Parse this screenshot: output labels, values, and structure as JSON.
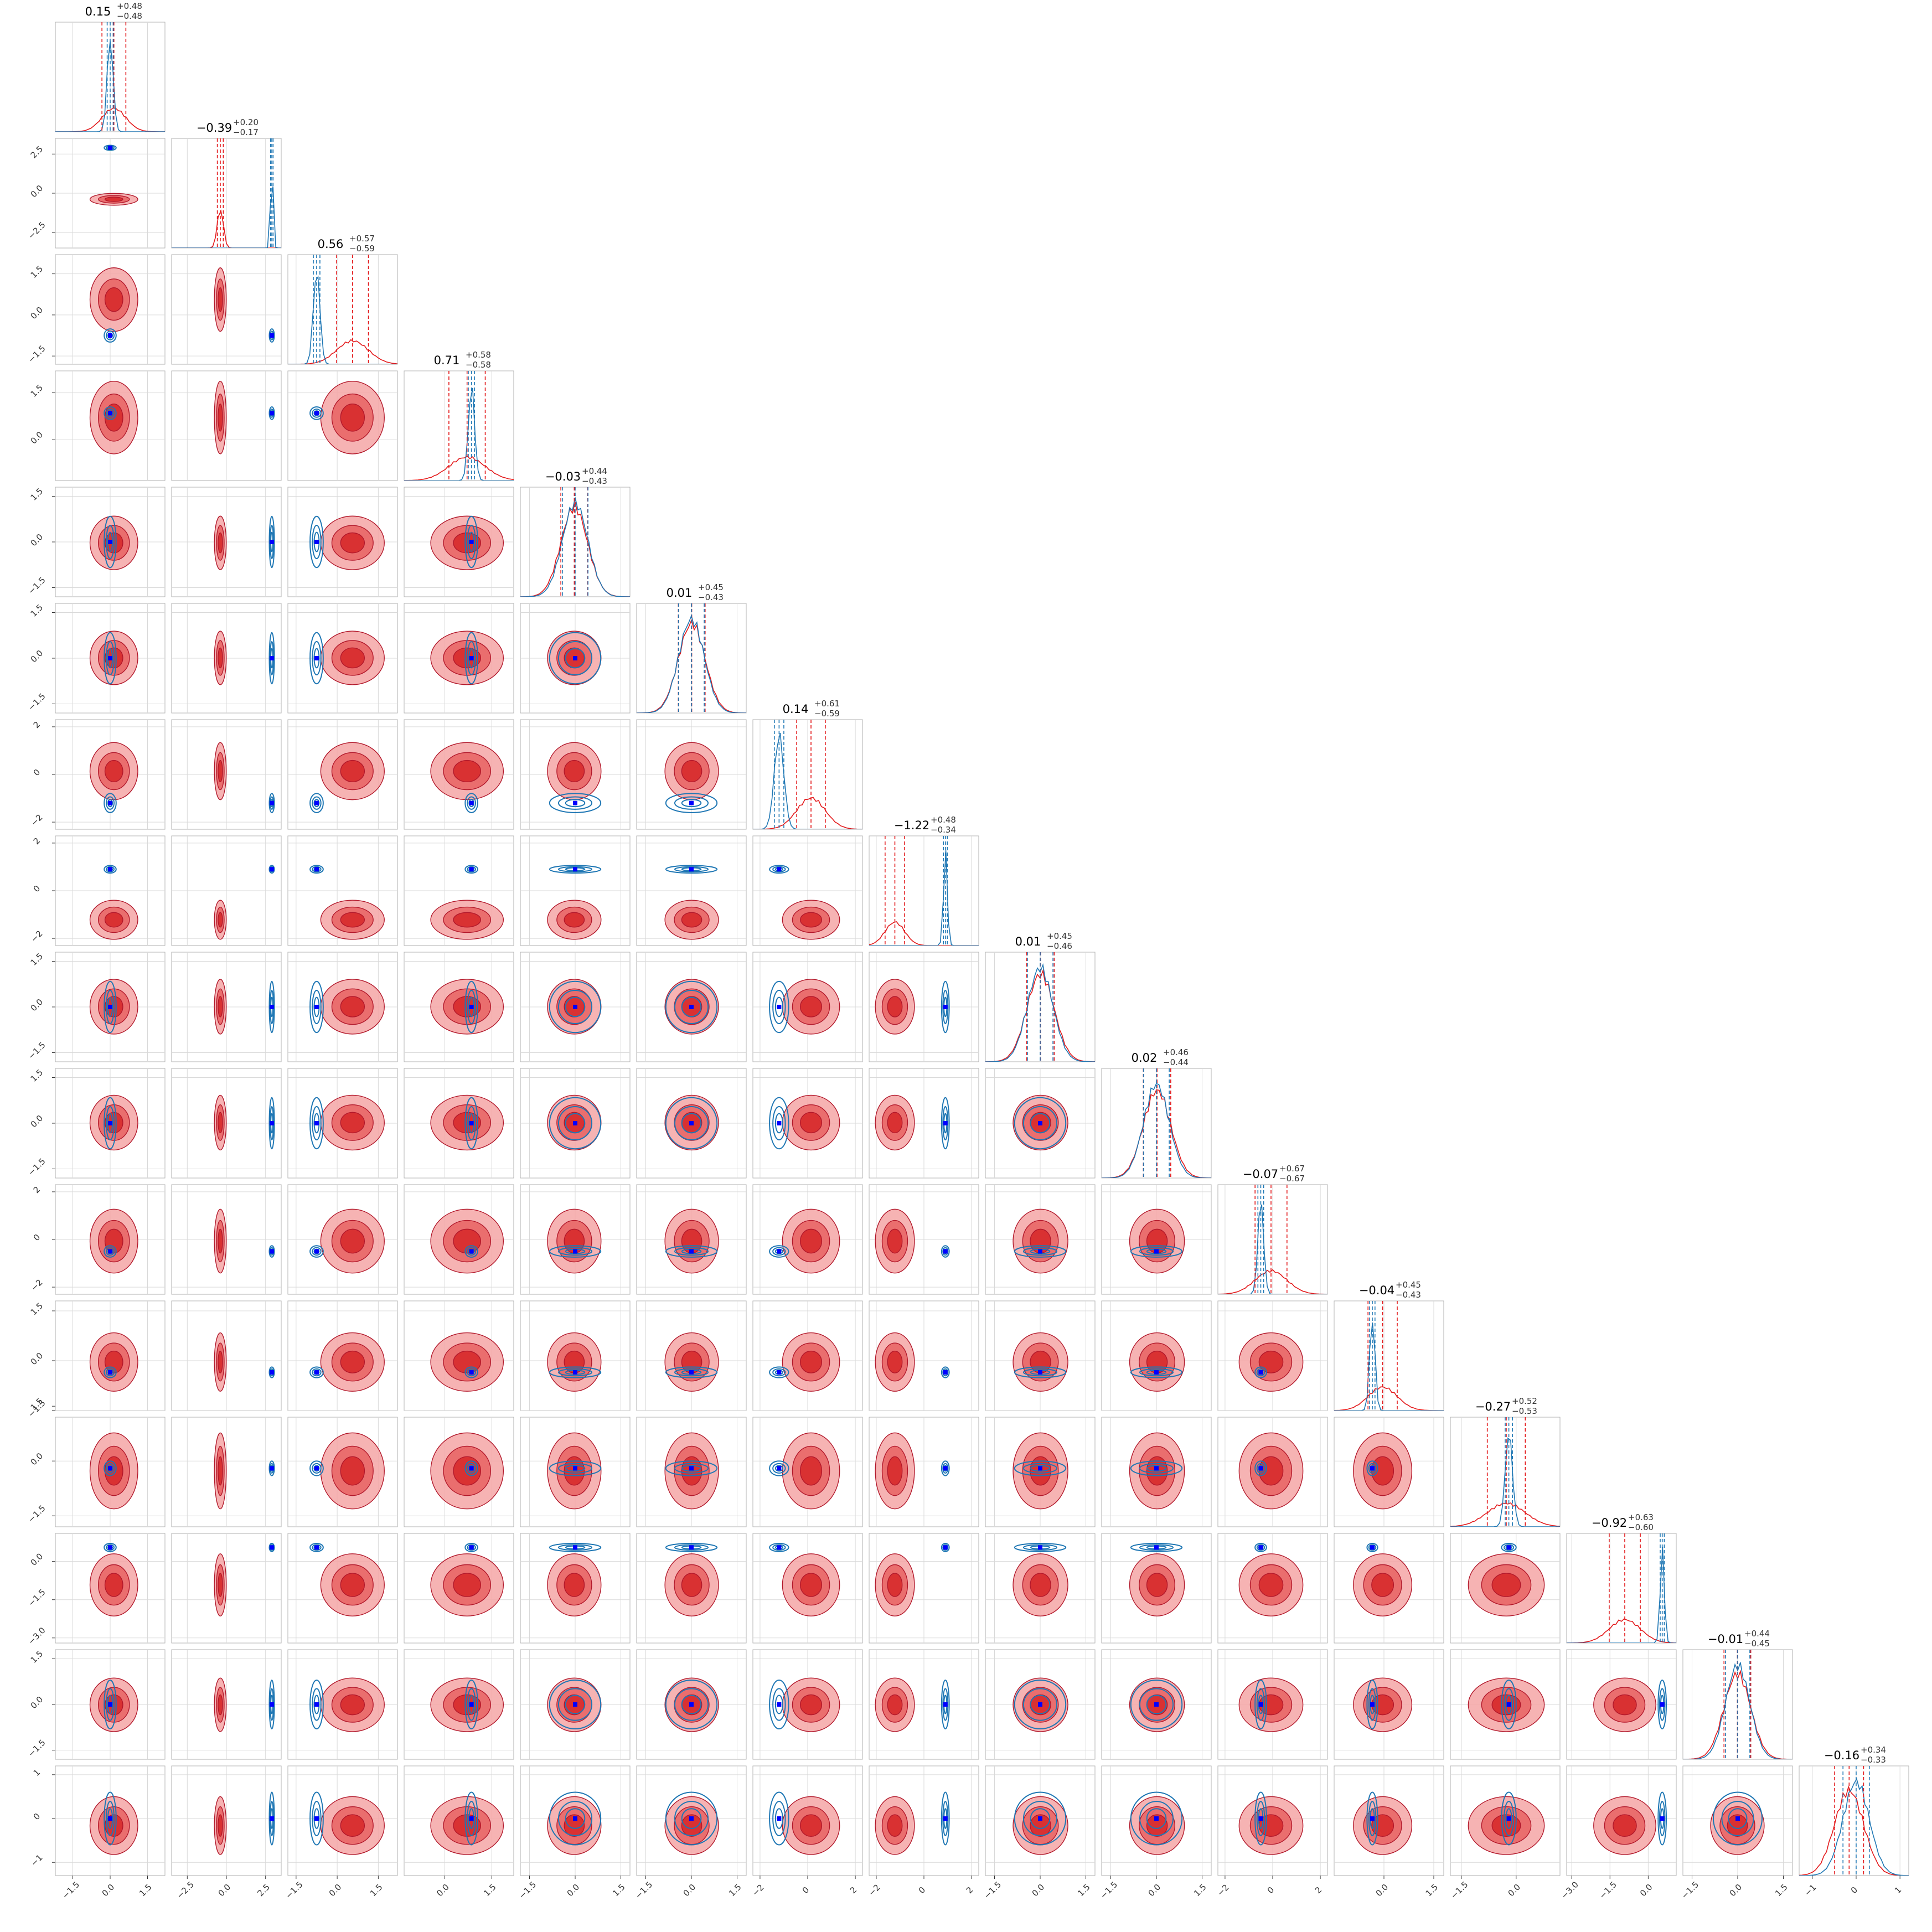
{
  "chart_data": {
    "type": "corner",
    "n_params": 16,
    "series": [
      {
        "color": "#e31a1c"
      },
      {
        "color": "#1f77b4"
      }
    ],
    "titles": [
      "0.15$^{+0.48}_{-0.48}$",
      "−0.39$^{+0.20}_{-0.17}$",
      "0.56$^{+0.57}_{-0.59}$",
      "0.71$^{+0.58}_{-0.58}$",
      "−0.03$^{+0.44}_{-0.43}$",
      "0.01$^{+0.45}_{-0.43}$",
      "0.14$^{+0.61}_{-0.59}$",
      "−1.22$^{+0.48}_{-0.34}$",
      "0.01$^{+0.45}_{-0.46}$",
      "0.02$^{+0.46}_{-0.44}$",
      "−0.07$^{+0.67}_{-0.67}$",
      "−0.04$^{+0.45}_{-0.43}$",
      "−0.27$^{+0.52}_{-0.53}$",
      "−0.92$^{+0.63}_{-0.60}$",
      "−0.01$^{+0.44}_{-0.45}$",
      "−0.16$^{+0.34}_{-0.33}$"
    ],
    "title_values": [
      {
        "median": "0.15",
        "plus": "+0.48",
        "minus": "−0.48"
      },
      {
        "median": "−0.39",
        "plus": "+0.20",
        "minus": "−0.17"
      },
      {
        "median": "0.56",
        "plus": "+0.57",
        "minus": "−0.59"
      },
      {
        "median": "0.71",
        "plus": "+0.58",
        "minus": "−0.58"
      },
      {
        "median": "−0.03",
        "plus": "+0.44",
        "minus": "−0.43"
      },
      {
        "median": "0.01",
        "plus": "+0.45",
        "minus": "−0.43"
      },
      {
        "median": "0.14",
        "plus": "+0.61",
        "minus": "−0.59"
      },
      {
        "median": "−1.22",
        "plus": "+0.48",
        "minus": "−0.34"
      },
      {
        "median": "0.01",
        "plus": "+0.45",
        "minus": "−0.46"
      },
      {
        "median": "0.02",
        "plus": "+0.46",
        "minus": "−0.44"
      },
      {
        "median": "−0.07",
        "plus": "+0.67",
        "minus": "−0.67"
      },
      {
        "median": "−0.04",
        "plus": "+0.45",
        "minus": "−0.43"
      },
      {
        "median": "−0.27",
        "plus": "+0.52",
        "minus": "−0.53"
      },
      {
        "median": "−0.92",
        "plus": "+0.63",
        "minus": "−0.60"
      },
      {
        "median": "−0.01",
        "plus": "+0.44",
        "minus": "−0.45"
      },
      {
        "median": "−0.16",
        "plus": "+0.34",
        "minus": "−0.33"
      }
    ],
    "x_ticks": [
      [
        "−1.5",
        "0.0",
        "1.5"
      ],
      [
        "−2.5",
        "0.0",
        "2.5"
      ],
      [
        "−1.5",
        "0.0",
        "1.5"
      ],
      [
        "0.0",
        "1.5"
      ],
      [
        "−1.5",
        "0.0",
        "1.5"
      ],
      [
        "−1.5",
        "0.0",
        "1.5"
      ],
      [
        "−2",
        "0",
        "2"
      ],
      [
        "−2",
        "0",
        "2"
      ],
      [
        "−1.5",
        "0.0",
        "1.5"
      ],
      [
        "−1.5",
        "0.0",
        "1.5"
      ],
      [
        "−2",
        "0",
        "2"
      ],
      [
        "0.0",
        "1.5"
      ],
      [
        "−1.5",
        "0.0"
      ],
      [
        "−3.0",
        "−1.5",
        "0.0"
      ],
      [
        "−1.5",
        "0.0",
        "1.5"
      ],
      [
        "−1",
        "0",
        "1"
      ]
    ],
    "y_ticks": [
      [],
      [
        "2.5",
        "0.0",
        "−2.5"
      ],
      [
        "1.5",
        "0.0",
        "−1.5"
      ],
      [
        "1.5",
        "0.0"
      ],
      [
        "1.5",
        "0.0",
        "−1.5"
      ],
      [
        "1.5",
        "0.0",
        "−1.5"
      ],
      [
        "2",
        "0",
        "−2"
      ],
      [
        "2",
        "0",
        "−2"
      ],
      [
        "1.5",
        "0.0",
        "−1.5"
      ],
      [
        "1.5",
        "0.0",
        "−1.5"
      ],
      [
        "2",
        "0",
        "−2"
      ],
      [
        "1.5",
        "0.0",
        "−1.5"
      ],
      [
        "1.5",
        "0.0",
        "−1.5"
      ],
      [
        "0.0",
        "−1.5",
        "−3.0"
      ],
      [
        "1.5",
        "0.0",
        "−1.5"
      ],
      [
        "1",
        "0",
        "−1"
      ]
    ],
    "ranges": [
      [
        -2.2,
        2.2
      ],
      [
        -3.5,
        3.5
      ],
      [
        -1.8,
        2.2
      ],
      [
        -1.3,
        2.2
      ],
      [
        -1.8,
        1.8
      ],
      [
        -1.8,
        1.8
      ],
      [
        -2.3,
        2.3
      ],
      [
        -2.3,
        2.3
      ],
      [
        -1.8,
        1.8
      ],
      [
        -1.8,
        1.8
      ],
      [
        -2.3,
        2.3
      ],
      [
        -1.5,
        1.8
      ],
      [
        -1.8,
        1.2
      ],
      [
        -3.2,
        1.1
      ],
      [
        -1.8,
        1.8
      ],
      [
        -1.3,
        1.2
      ]
    ],
    "red_center": [
      0.15,
      -0.39,
      0.56,
      0.71,
      -0.03,
      0.01,
      0.14,
      -1.22,
      0.01,
      0.02,
      -0.07,
      -0.04,
      -0.27,
      -0.92,
      -0.01,
      -0.16
    ],
    "red_sigma": [
      0.48,
      0.19,
      0.58,
      0.58,
      0.44,
      0.44,
      0.6,
      0.41,
      0.45,
      0.45,
      0.67,
      0.44,
      0.52,
      0.61,
      0.44,
      0.33
    ],
    "blue_center": [
      0.0,
      2.9,
      -0.75,
      0.85,
      0.0,
      0.0,
      -1.2,
      0.9,
      0.0,
      0.0,
      -0.5,
      -0.35,
      -0.2,
      0.55,
      0.0,
      0.0
    ],
    "blue_sigma": [
      0.12,
      0.08,
      0.12,
      0.1,
      0.42,
      0.42,
      0.2,
      0.08,
      0.42,
      0.42,
      0.12,
      0.08,
      0.1,
      0.08,
      0.4,
      0.3
    ],
    "quantiles_sigma": [
      -1,
      0,
      1
    ],
    "grid": true,
    "legend": "none"
  }
}
